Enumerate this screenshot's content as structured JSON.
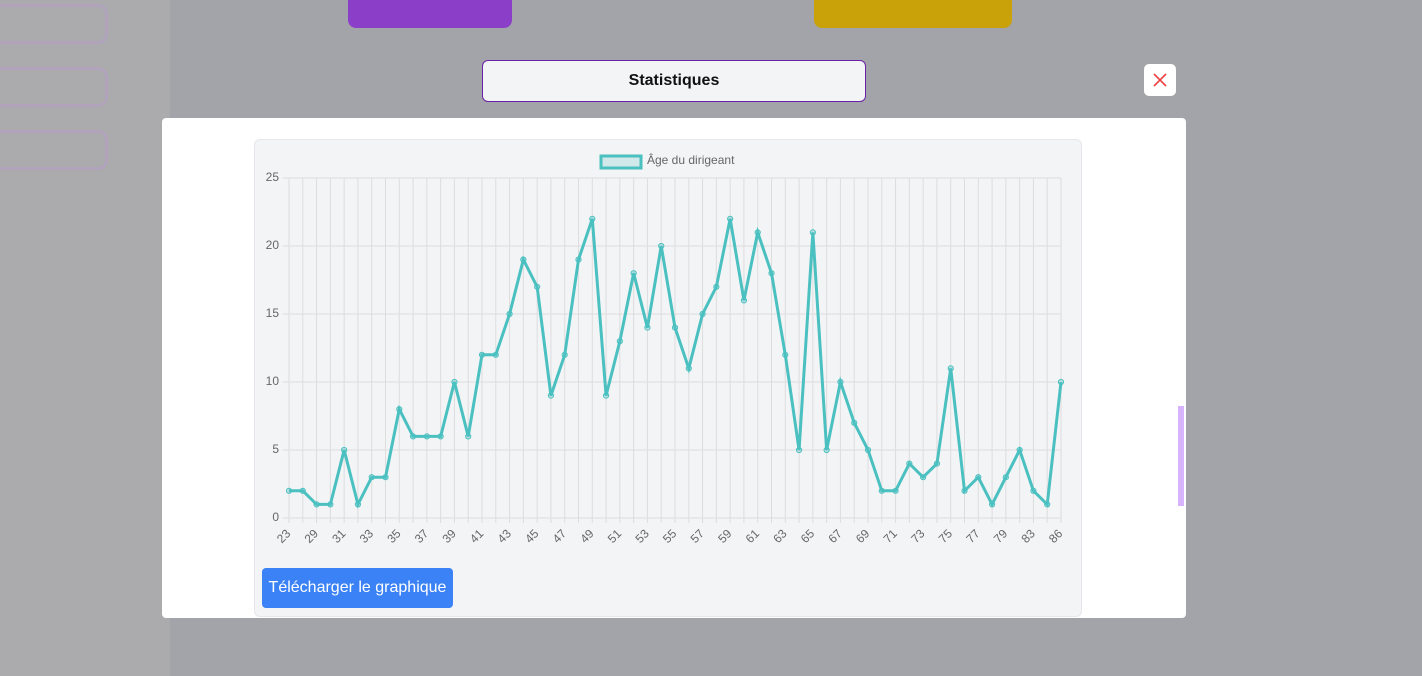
{
  "modal": {
    "title": "Statistiques",
    "button": "Télécharger le graphique"
  },
  "chart_data": {
    "type": "line",
    "categories": [
      23,
      null,
      29,
      null,
      31,
      null,
      33,
      null,
      35,
      null,
      37,
      null,
      39,
      null,
      41,
      null,
      43,
      null,
      45,
      null,
      47,
      null,
      49,
      null,
      51,
      null,
      53,
      null,
      55,
      null,
      57,
      null,
      59,
      null,
      61,
      null,
      63,
      null,
      65,
      null,
      67,
      null,
      69,
      null,
      71,
      null,
      73,
      null,
      75,
      null,
      77,
      null,
      79,
      null,
      83,
      null,
      86
    ],
    "series": [
      {
        "name": "Âge du dirigeant",
        "color": "#4bc0c0",
        "values": [
          2,
          2,
          1,
          1,
          5,
          1,
          3,
          3,
          8,
          6,
          6,
          6,
          10,
          6,
          12,
          12,
          15,
          19,
          17,
          9,
          12,
          19,
          22,
          9,
          13,
          18,
          14,
          20,
          14,
          11,
          15,
          17,
          22,
          16,
          21,
          18,
          12,
          5,
          21,
          5,
          10,
          7,
          5,
          2,
          2,
          4,
          3,
          4,
          11,
          2,
          3,
          1,
          3,
          5,
          2,
          1,
          10
        ]
      }
    ],
    "ylim": [
      0,
      25
    ],
    "yticks": [
      0,
      5,
      10,
      15,
      20,
      25
    ],
    "grid": true,
    "legend": "top"
  }
}
